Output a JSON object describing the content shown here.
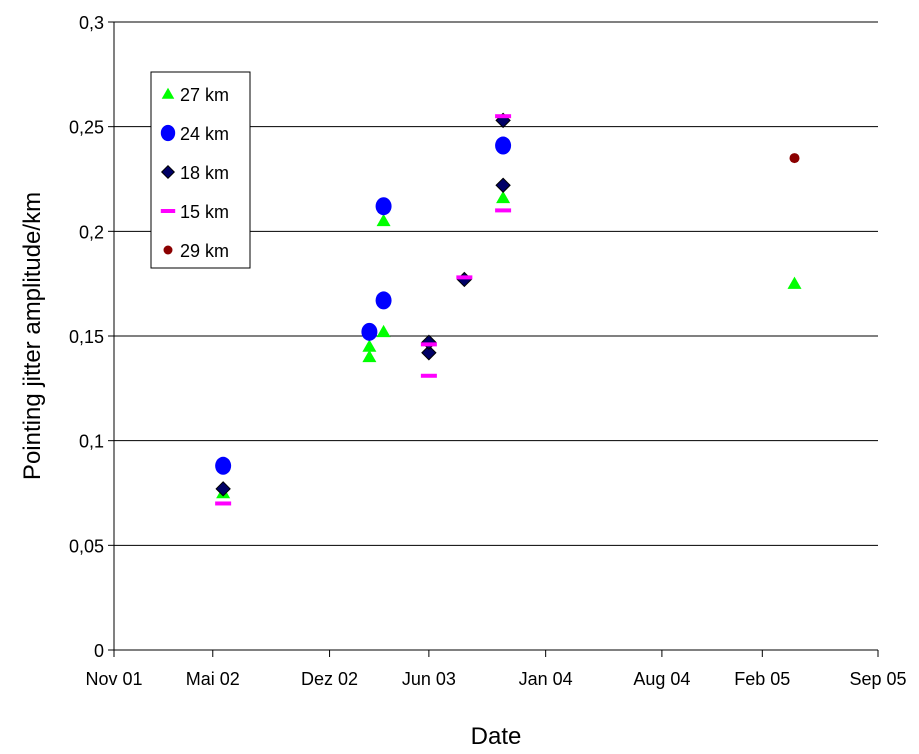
{
  "chart_data": {
    "type": "scatter",
    "title": "",
    "xlabel": "Date",
    "ylabel": "Pointing jitter amplitude/km",
    "xlim": [
      "2001-11-01",
      "2005-09-01"
    ],
    "ylim": [
      0,
      0.3
    ],
    "x_ticks": [
      {
        "date": "2001-11-01",
        "label": "Nov 01"
      },
      {
        "date": "2002-05-01",
        "label": "Mai 02"
      },
      {
        "date": "2002-12-01",
        "label": "Dez 02"
      },
      {
        "date": "2003-06-01",
        "label": "Jun 03"
      },
      {
        "date": "2004-01-01",
        "label": "Jan 04"
      },
      {
        "date": "2004-08-01",
        "label": "Aug 04"
      },
      {
        "date": "2005-02-01",
        "label": "Feb 05"
      },
      {
        "date": "2005-09-01",
        "label": "Sep 05"
      }
    ],
    "y_ticks": [
      {
        "value": 0,
        "label": "0"
      },
      {
        "value": 0.05,
        "label": "0,05"
      },
      {
        "value": 0.1,
        "label": "0,1"
      },
      {
        "value": 0.15,
        "label": "0,15"
      },
      {
        "value": 0.2,
        "label": "0,2"
      },
      {
        "value": 0.25,
        "label": "0,25"
      },
      {
        "value": 0.3,
        "label": "0,3"
      }
    ],
    "grid": {
      "horizontal": true,
      "vertical": false
    },
    "legend_position": "top-left",
    "series": [
      {
        "name": "27 km",
        "marker": "triangle",
        "color": "#00ff00",
        "points": [
          {
            "x": "2002-05-20",
            "y": 0.075
          },
          {
            "x": "2003-02-12",
            "y": 0.14
          },
          {
            "x": "2003-02-12",
            "y": 0.145
          },
          {
            "x": "2003-03-10",
            "y": 0.152
          },
          {
            "x": "2003-03-10",
            "y": 0.205
          },
          {
            "x": "2003-10-15",
            "y": 0.216
          },
          {
            "x": "2005-04-01",
            "y": 0.175
          }
        ]
      },
      {
        "name": "24 km",
        "marker": "circle",
        "color": "#0000ff",
        "points": [
          {
            "x": "2002-05-20",
            "y": 0.088
          },
          {
            "x": "2003-02-12",
            "y": 0.152
          },
          {
            "x": "2003-03-10",
            "y": 0.167
          },
          {
            "x": "2003-03-10",
            "y": 0.212
          },
          {
            "x": "2003-10-15",
            "y": 0.241
          }
        ]
      },
      {
        "name": "18 km",
        "marker": "diamond",
        "color": "#000066",
        "points": [
          {
            "x": "2002-05-20",
            "y": 0.077
          },
          {
            "x": "2003-06-01",
            "y": 0.142
          },
          {
            "x": "2003-06-01",
            "y": 0.147
          },
          {
            "x": "2003-08-05",
            "y": 0.177
          },
          {
            "x": "2003-10-15",
            "y": 0.222
          },
          {
            "x": "2003-10-15",
            "y": 0.253
          }
        ]
      },
      {
        "name": "15 km",
        "marker": "dash",
        "color": "#ff00ff",
        "points": [
          {
            "x": "2002-05-20",
            "y": 0.07
          },
          {
            "x": "2003-06-01",
            "y": 0.131
          },
          {
            "x": "2003-06-01",
            "y": 0.146
          },
          {
            "x": "2003-08-05",
            "y": 0.178
          },
          {
            "x": "2003-10-15",
            "y": 0.21
          },
          {
            "x": "2003-10-15",
            "y": 0.255
          }
        ]
      },
      {
        "name": "29 km",
        "marker": "small-circle",
        "color": "#8b0000",
        "points": [
          {
            "x": "2005-04-01",
            "y": 0.235
          }
        ]
      }
    ]
  }
}
